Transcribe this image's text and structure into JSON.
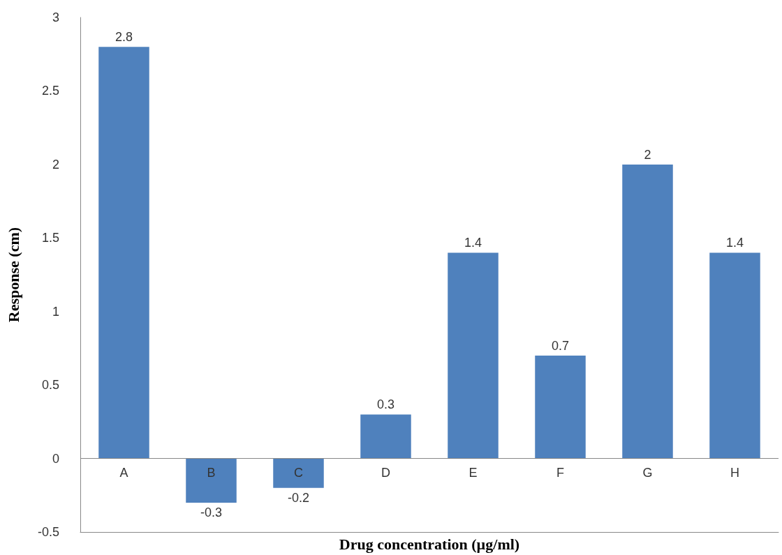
{
  "chart_data": {
    "type": "bar",
    "xlabel": "Drug concentration (µg/ml)",
    "ylabel": "Response (cm)",
    "categories": [
      "A",
      "B",
      "C",
      "D",
      "E",
      "F",
      "G",
      "H"
    ],
    "values": [
      2.8,
      -0.3,
      -0.2,
      0.3,
      1.4,
      0.7,
      2,
      1.4
    ],
    "color": "#4f81bd",
    "ylim": [
      -0.5,
      3
    ],
    "yticks": [
      -0.5,
      0,
      0.5,
      1,
      1.5,
      2,
      2.5,
      3
    ],
    "data_labels": true
  }
}
